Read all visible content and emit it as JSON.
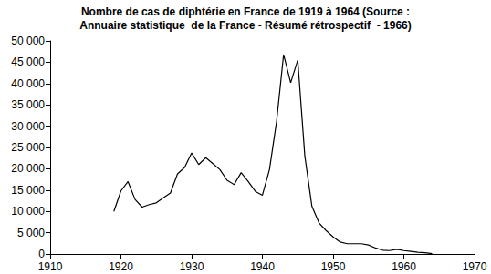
{
  "chart_data": {
    "type": "line",
    "title": "Nombre de cas de diphtérie en France de 1919 à 1964 (Source :\nAnnuaire statistique  de la France - Résumé rétrospectif  - 1966)",
    "x": [
      1919,
      1920,
      1921,
      1922,
      1923,
      1924,
      1925,
      1926,
      1927,
      1928,
      1929,
      1930,
      1931,
      1932,
      1933,
      1934,
      1935,
      1936,
      1937,
      1938,
      1939,
      1940,
      1941,
      1942,
      1943,
      1944,
      1945,
      1946,
      1947,
      1948,
      1949,
      1950,
      1951,
      1952,
      1953,
      1954,
      1955,
      1956,
      1957,
      1958,
      1959,
      1960,
      1961,
      1962,
      1963,
      1964
    ],
    "values": [
      10000,
      14800,
      17000,
      12800,
      11000,
      11600,
      12000,
      13200,
      14300,
      18800,
      20300,
      23700,
      21000,
      22600,
      21200,
      19800,
      17300,
      16300,
      19100,
      17000,
      14700,
      13800,
      19800,
      31000,
      46800,
      40200,
      45500,
      23000,
      11200,
      7300,
      5500,
      4000,
      2800,
      2400,
      2400,
      2400,
      2100,
      1400,
      900,
      800,
      1100,
      800,
      600,
      400,
      300,
      100
    ],
    "color": "#000000",
    "xlim": [
      1910,
      1970
    ],
    "xticks": [
      1910,
      1920,
      1930,
      1940,
      1950,
      1960,
      1970
    ],
    "ylim": [
      0,
      50000
    ],
    "yticks": [
      0,
      {
        "value": 5000,
        "label": "5 000"
      },
      {
        "value": 10000,
        "label": "10 000"
      },
      {
        "value": 15000,
        "label": "15 000"
      },
      {
        "value": 20000,
        "label": "20 000"
      },
      {
        "value": 25000,
        "label": "25 000"
      },
      {
        "value": 30000,
        "label": "30 000"
      },
      {
        "value": 35000,
        "label": "35 000"
      },
      {
        "value": 40000,
        "label": "40 000"
      },
      {
        "value": 45000,
        "label": "45 000"
      },
      {
        "value": 50000,
        "label": "50 000"
      }
    ],
    "grid": false
  }
}
